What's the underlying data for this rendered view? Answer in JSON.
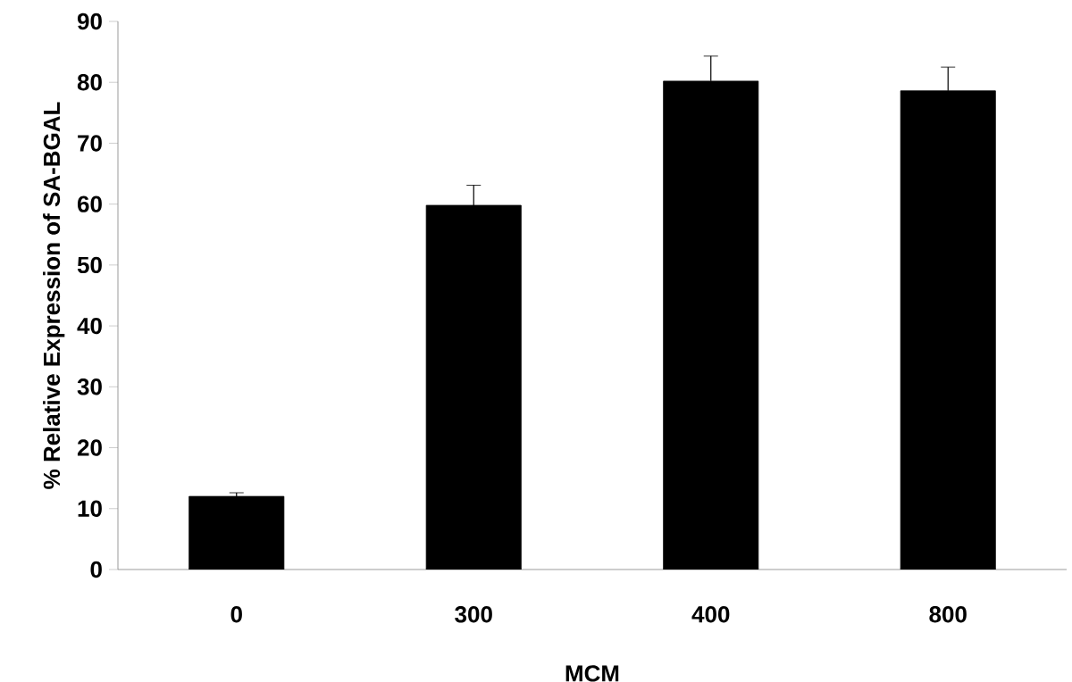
{
  "chart_data": {
    "type": "bar",
    "xlabel": "MCM",
    "ylabel": "% Relative Expression of SA-BGAL",
    "categories": [
      "0",
      "300",
      "400",
      "800"
    ],
    "values": [
      12.0,
      59.8,
      80.2,
      78.6
    ],
    "errors": [
      0.6,
      3.3,
      4.1,
      3.9
    ],
    "color": "#000000",
    "ylim": [
      0,
      90
    ],
    "yticks": [
      0,
      10,
      20,
      30,
      40,
      50,
      60,
      70,
      80,
      90
    ],
    "grid": false
  }
}
